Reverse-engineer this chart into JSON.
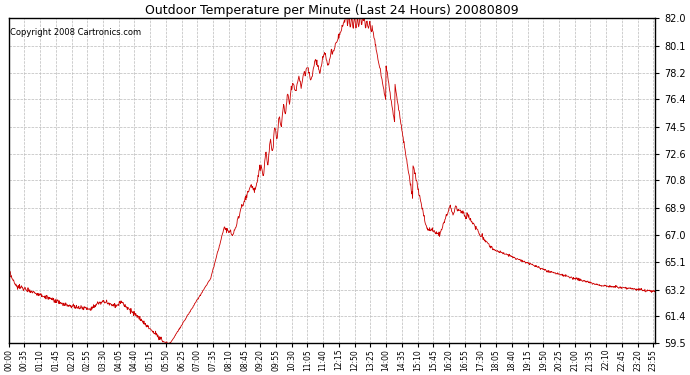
{
  "title": "Outdoor Temperature per Minute (Last 24 Hours) 20080809",
  "copyright": "Copyright 2008 Cartronics.com",
  "line_color": "#cc0000",
  "bg_color": "#ffffff",
  "grid_color": "#bbbbbb",
  "yticks": [
    59.5,
    61.4,
    63.2,
    65.1,
    67.0,
    68.9,
    70.8,
    72.6,
    74.5,
    76.4,
    78.2,
    80.1,
    82.0
  ],
  "ylim": [
    59.5,
    82.0
  ],
  "xtick_labels": [
    "00:00",
    "00:35",
    "01:10",
    "01:45",
    "02:20",
    "02:55",
    "03:30",
    "04:05",
    "04:40",
    "05:15",
    "05:50",
    "06:25",
    "07:00",
    "07:35",
    "08:10",
    "08:45",
    "09:20",
    "09:55",
    "10:30",
    "11:05",
    "11:40",
    "12:15",
    "12:50",
    "13:25",
    "14:00",
    "14:35",
    "15:10",
    "15:45",
    "16:20",
    "16:55",
    "17:30",
    "18:05",
    "18:40",
    "19:15",
    "19:50",
    "20:25",
    "21:00",
    "21:35",
    "22:10",
    "22:45",
    "23:20",
    "23:55"
  ]
}
